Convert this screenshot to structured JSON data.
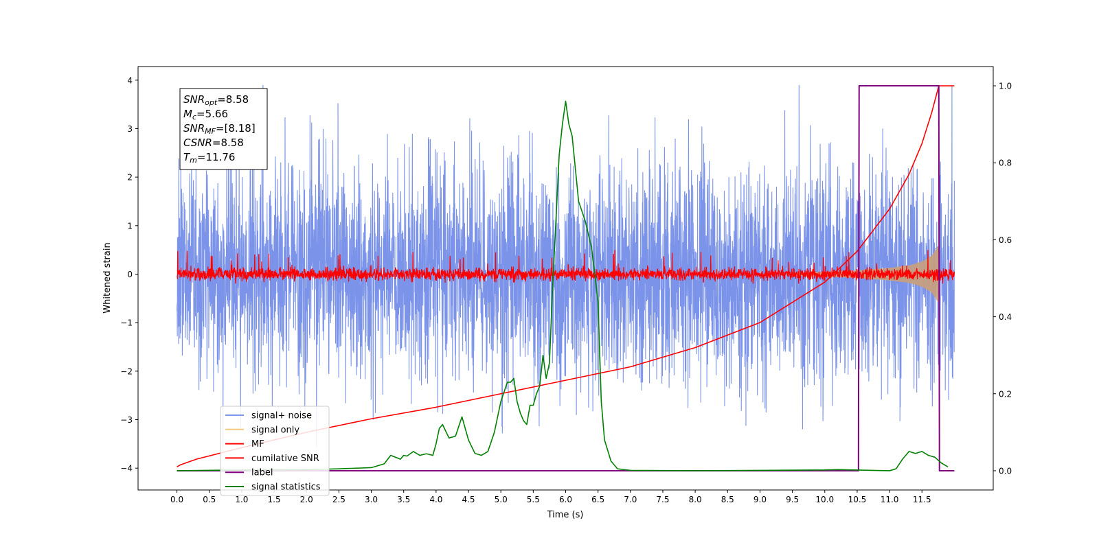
{
  "chart_data": {
    "type": "line",
    "xlabel": "Time (s)",
    "ylabel": "Whitened strain",
    "xlim": [
      -0.6,
      12.6
    ],
    "ylim": [
      -4.45,
      4.28
    ],
    "y2lim": [
      -0.05,
      1.05
    ],
    "x_ticks": [
      0.0,
      0.5,
      1.0,
      1.5,
      2.0,
      2.5,
      3.0,
      3.5,
      4.0,
      4.5,
      5.0,
      5.5,
      6.0,
      6.5,
      7.0,
      7.5,
      8.0,
      8.5,
      9.0,
      9.5,
      10.0,
      10.5,
      11.0,
      11.5
    ],
    "x_tick_labels": [
      "0.0",
      "0.5",
      "1.0",
      "1.5",
      "2.0",
      "2.5",
      "3.0",
      "3.5",
      "4.0",
      "4.5",
      "5.0",
      "5.5",
      "6.0",
      "6.5",
      "7.0",
      "7.5",
      "8.0",
      "8.5",
      "9.0",
      "9.5",
      "10.0",
      "10.5",
      "11.0",
      "11.5"
    ],
    "y_ticks": [
      -4,
      -3,
      -2,
      -1,
      0,
      1,
      2,
      3,
      4
    ],
    "y_tick_labels": [
      "−4",
      "−3",
      "−2",
      "−1",
      "0",
      "1",
      "2",
      "3",
      "4"
    ],
    "y2_ticks": [
      0.0,
      0.2,
      0.4,
      0.6,
      0.8,
      1.0
    ],
    "y2_tick_labels": [
      "0.0",
      "0.2",
      "0.4",
      "0.6",
      "0.8",
      "1.0"
    ],
    "annotation": [
      {
        "base": "SNR",
        "sub": "opt",
        "value": "=8.58"
      },
      {
        "base": "M",
        "sub": "c",
        "value": "=5.66"
      },
      {
        "base": "SNR",
        "sub": "MF",
        "value": "=[8.18]"
      },
      {
        "base": "CSNR",
        "sub": "",
        "value": "=8.58"
      },
      {
        "base": "T",
        "sub": "m",
        "value": "=11.76"
      }
    ],
    "legend_position": "lower-left",
    "series": [
      {
        "name": "signal+ noise",
        "color": "#7b93e8",
        "axis": "left",
        "kind": "noise",
        "x_range": [
          0.0,
          12.0
        ],
        "typical_amplitude": 1.1,
        "peak_range": [
          -3.6,
          3.9
        ]
      },
      {
        "name": "signal only",
        "color": "#f5c87a",
        "axis": "left",
        "kind": "chirp-envelope",
        "envelope": {
          "x": [
            9.5,
            10.0,
            10.5,
            11.0,
            11.3,
            11.5,
            11.65,
            11.76,
            11.77
          ],
          "amp": [
            0.03,
            0.05,
            0.08,
            0.13,
            0.18,
            0.26,
            0.38,
            0.6,
            0.0
          ]
        }
      },
      {
        "name": "MF",
        "color": "#ff0000",
        "axis": "left",
        "kind": "noise",
        "x_range": [
          0.0,
          12.0
        ],
        "typical_amplitude": 0.12,
        "peak_range": [
          -0.2,
          0.5
        ]
      },
      {
        "name": "cumilative SNR",
        "color": "#ff0000",
        "axis": "right",
        "x": [
          0.0,
          0.05,
          0.3,
          1.0,
          2.0,
          3.0,
          4.0,
          5.0,
          6.0,
          7.0,
          8.0,
          9.0,
          10.0,
          10.5,
          11.0,
          11.3,
          11.5,
          11.65,
          11.76,
          12.0
        ],
        "y": [
          0.01,
          0.015,
          0.03,
          0.06,
          0.1,
          0.135,
          0.165,
          0.2,
          0.235,
          0.27,
          0.32,
          0.385,
          0.49,
          0.57,
          0.68,
          0.77,
          0.85,
          0.93,
          1.0,
          1.0
        ]
      },
      {
        "name": "label",
        "color": "#800080",
        "axis": "right",
        "x": [
          0.0,
          10.52,
          10.53,
          11.76,
          11.77,
          12.0
        ],
        "y": [
          0.0,
          0.0,
          1.0,
          1.0,
          0.0,
          0.0
        ]
      },
      {
        "name": "signal statistics",
        "color": "#008000",
        "axis": "right",
        "x": [
          0.0,
          1.0,
          2.0,
          2.5,
          3.0,
          3.2,
          3.3,
          3.45,
          3.5,
          3.55,
          3.65,
          3.75,
          3.85,
          3.95,
          4.0,
          4.05,
          4.1,
          4.2,
          4.3,
          4.4,
          4.5,
          4.6,
          4.7,
          4.8,
          4.9,
          5.0,
          5.1,
          5.15,
          5.2,
          5.25,
          5.3,
          5.35,
          5.4,
          5.45,
          5.5,
          5.55,
          5.6,
          5.65,
          5.7,
          5.75,
          5.8,
          5.85,
          5.9,
          5.95,
          6.0,
          6.05,
          6.1,
          6.2,
          6.3,
          6.4,
          6.5,
          6.55,
          6.6,
          6.7,
          6.8,
          7.0,
          8.0,
          9.0,
          10.0,
          10.2,
          11.0,
          11.1,
          11.2,
          11.3,
          11.4,
          11.5,
          11.6,
          11.7,
          11.8,
          11.9
        ],
        "y": [
          0.0,
          0.002,
          0.003,
          0.005,
          0.008,
          0.018,
          0.04,
          0.03,
          0.04,
          0.038,
          0.05,
          0.04,
          0.044,
          0.04,
          0.07,
          0.11,
          0.12,
          0.085,
          0.09,
          0.14,
          0.08,
          0.045,
          0.04,
          0.05,
          0.1,
          0.18,
          0.23,
          0.23,
          0.24,
          0.18,
          0.15,
          0.13,
          0.12,
          0.17,
          0.17,
          0.2,
          0.22,
          0.3,
          0.24,
          0.28,
          0.48,
          0.65,
          0.82,
          0.9,
          0.96,
          0.9,
          0.87,
          0.7,
          0.65,
          0.58,
          0.44,
          0.18,
          0.08,
          0.025,
          0.005,
          0.001,
          0.0,
          0.001,
          0.002,
          0.003,
          0.0,
          0.005,
          0.03,
          0.05,
          0.045,
          0.05,
          0.04,
          0.035,
          0.02,
          0.01
        ]
      }
    ]
  }
}
